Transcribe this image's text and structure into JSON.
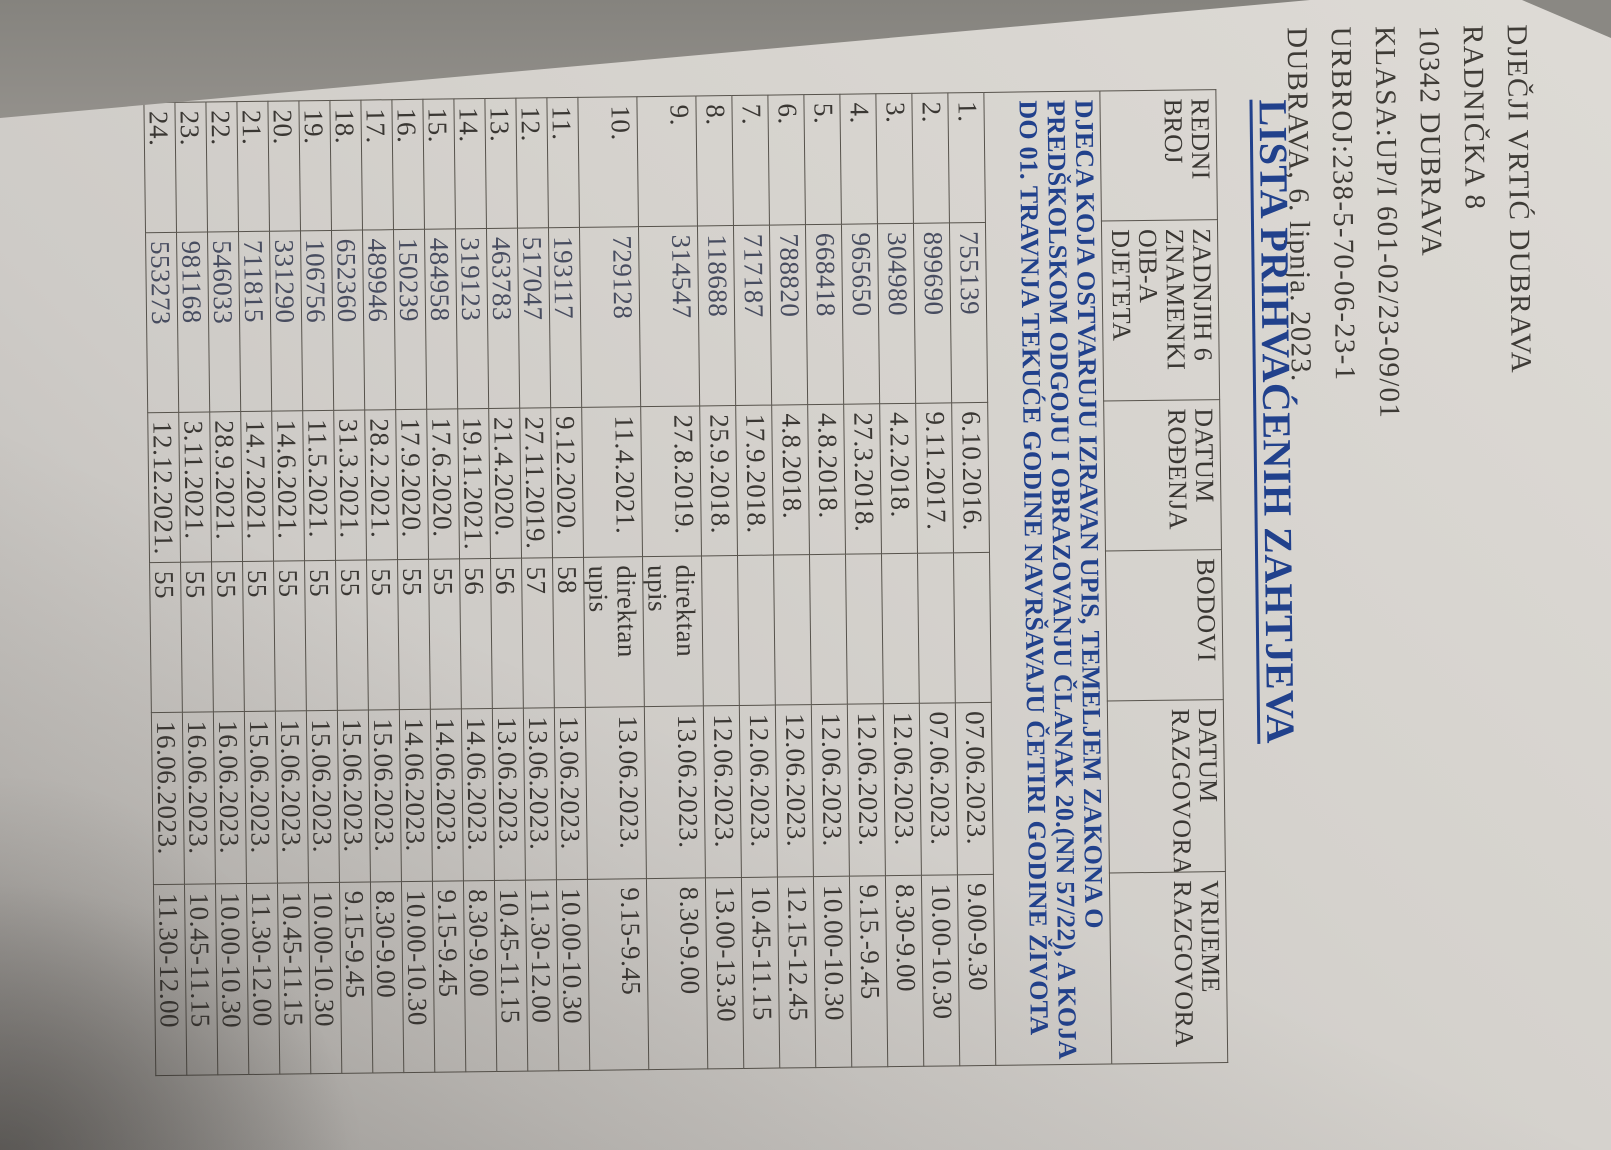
{
  "page": {
    "header_lines": [
      "DJEČJI VRTIĆ DUBRAVA",
      "RADNIČKA 8",
      "10342 DUBRAVA",
      "KLASA:UP/I 601-02/23-09/01",
      "URBROJ:238-5-70-06-23-1",
      "DUBRAVA, 6. lipnja. 2023."
    ],
    "title": "LISTA PRIHVAĆENIH ZAHTJEVA",
    "note_lines": [
      "DJECA KOJA OSTVARUJU IZRAVAN UPIS, TEMELJEM ZAKONA O",
      "PREDŠKOLSKOM ODGOJU I OBRAZOVANJU ČLANAK 20.(NN 57/22), A KOJA",
      "DO 01. TRAVNJA TEKUĆE GODINE NAVRŠAVAJU ČETIRI GODINE ŽIVOTA"
    ],
    "colors": {
      "backdrop": "#8b8985",
      "paper": "#d5d2cd",
      "accent": "#21418c",
      "ink": "#3a3733",
      "line": "#57534c",
      "oib_ink": "#474c5f"
    }
  },
  "table": {
    "columns": [
      "REDNI BROJ",
      "ZADNJIH 6 ZNAMENKI OIB-A DJETETA",
      "DATUM ROĐENJA",
      "BODOVI",
      "DATUM RAZGOVORA",
      "VRIJEME RAZGOVORA"
    ],
    "rows": [
      {
        "num": "1.",
        "oib": "755139",
        "dob": "6.10.2016.",
        "points": "",
        "interview_date": "07.06.2023.",
        "interview_time": "9.00-9.30"
      },
      {
        "num": "2.",
        "oib": "899690",
        "dob": "9.11.2017.",
        "points": "",
        "interview_date": "07.06.2023.",
        "interview_time": "10.00-10.30"
      },
      {
        "num": "3.",
        "oib": "304980",
        "dob": "4.2.2018.",
        "points": "",
        "interview_date": "12.06.2023.",
        "interview_time": "8.30-9.00"
      },
      {
        "num": "4.",
        "oib": "965650",
        "dob": "27.3.2018.",
        "points": "",
        "interview_date": "12.06.2023.",
        "interview_time": "9.15.-9.45"
      },
      {
        "num": "5.",
        "oib": "668418",
        "dob": "4.8.2018.",
        "points": "",
        "interview_date": "12.06.2023.",
        "interview_time": "10.00-10.30"
      },
      {
        "num": "6.",
        "oib": "788820",
        "dob": "4.8.2018.",
        "points": "",
        "interview_date": "12.06.2023.",
        "interview_time": "12.15-12.45"
      },
      {
        "num": "7.",
        "oib": "717187",
        "dob": "17.9.2018.",
        "points": "",
        "interview_date": "12.06.2023.",
        "interview_time": "10.45-11.15"
      },
      {
        "num": "8.",
        "oib": "118688",
        "dob": "25.9.2018.",
        "points": "",
        "interview_date": "12.06.2023.",
        "interview_time": "13.00-13.30"
      },
      {
        "num": "9.",
        "oib": "314547",
        "dob": "27.8.2019.",
        "points": "direktan upis",
        "interview_date": "13.06.2023.",
        "interview_time": "8.30-9.00"
      },
      {
        "num": "10.",
        "oib": "729128",
        "dob": "11.4.2021.",
        "points": "direktan upis",
        "interview_date": "13.06.2023.",
        "interview_time": "9.15-9.45"
      },
      {
        "num": "11.",
        "oib": "193117",
        "dob": "9.12.2020.",
        "points": "58",
        "interview_date": "13.06.2023.",
        "interview_time": "10.00-10.30"
      },
      {
        "num": "12.",
        "oib": "517047",
        "dob": "27.11.2019.",
        "points": "57",
        "interview_date": "13.06.2023.",
        "interview_time": "11.30-12.00"
      },
      {
        "num": "13.",
        "oib": "463783",
        "dob": "21.4.2020.",
        "points": "56",
        "interview_date": "13.06.2023.",
        "interview_time": "10.45-11.15"
      },
      {
        "num": "14.",
        "oib": "319123",
        "dob": "19.11.2021.",
        "points": "56",
        "interview_date": "14.06.2023.",
        "interview_time": "8.30-9.00"
      },
      {
        "num": "15.",
        "oib": "484958",
        "dob": "17.6.2020.",
        "points": "55",
        "interview_date": "14.06.2023.",
        "interview_time": "9.15-9.45"
      },
      {
        "num": "16.",
        "oib": "150239",
        "dob": "17.9.2020.",
        "points": "55",
        "interview_date": "14.06.2023.",
        "interview_time": "10.00-10.30"
      },
      {
        "num": "17.",
        "oib": "489946",
        "dob": "28.2.2021.",
        "points": "55",
        "interview_date": "15.06.2023.",
        "interview_time": "8.30-9.00"
      },
      {
        "num": "18.",
        "oib": "652360",
        "dob": "31.3.2021.",
        "points": "55",
        "interview_date": "15.06.2023.",
        "interview_time": "9.15-9.45"
      },
      {
        "num": "19.",
        "oib": "106756",
        "dob": "11.5.2021.",
        "points": "55",
        "interview_date": "15.06.2023.",
        "interview_time": "10.00-10.30"
      },
      {
        "num": "20.",
        "oib": "331290",
        "dob": "14.6.2021.",
        "points": "55",
        "interview_date": "15.06.2023.",
        "interview_time": "10.45-11.15"
      },
      {
        "num": "21.",
        "oib": "711815",
        "dob": "14.7.2021.",
        "points": "55",
        "interview_date": "15.06.2023.",
        "interview_time": "11.30-12.00"
      },
      {
        "num": "22.",
        "oib": "546033",
        "dob": "28.9.2021.",
        "points": "55",
        "interview_date": "16.06.2023.",
        "interview_time": "10.00-10.30"
      },
      {
        "num": "23.",
        "oib": "981168",
        "dob": "3.11.2021.",
        "points": "55",
        "interview_date": "16.06.2023.",
        "interview_time": "10.45-11.15"
      },
      {
        "num": "24.",
        "oib": "553273",
        "dob": "12.12.2021.",
        "points": "55",
        "interview_date": "16.06.2023.",
        "interview_time": "11.30-12.00"
      }
    ]
  }
}
